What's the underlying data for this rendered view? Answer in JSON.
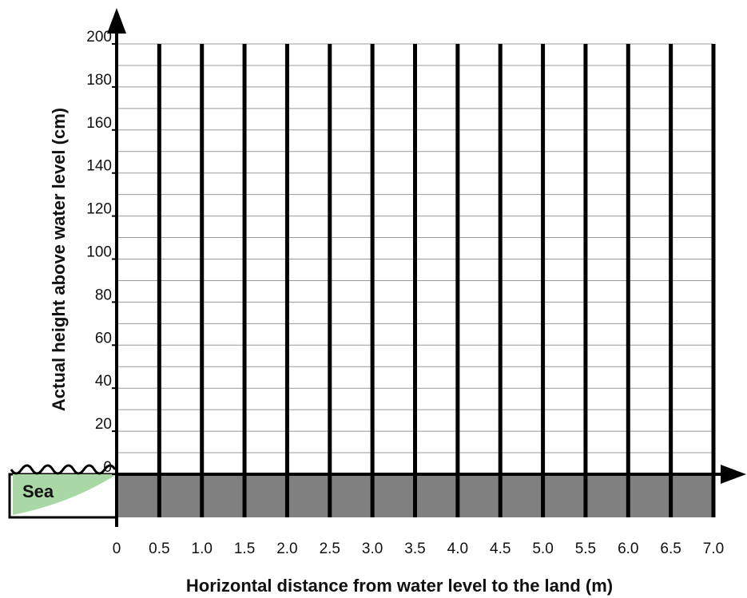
{
  "chart_data": {
    "type": "grid",
    "x_label": "Horizontal distance from water level to the land (m)",
    "y_label": "Actual height above water level (cm)",
    "sea_label": "Sea",
    "xlim": [
      0,
      7
    ],
    "xticks": [
      0,
      0.5,
      {
        "value": 1,
        "label": "1.0"
      },
      1.5,
      {
        "value": 2,
        "label": "2.0"
      },
      2.5,
      {
        "value": 3,
        "label": "3.0"
      },
      3.5,
      {
        "value": 4,
        "label": "4.0"
      },
      4.5,
      {
        "value": 5,
        "label": "5.0"
      },
      5.5,
      {
        "value": 6,
        "label": "6.0"
      },
      6.5,
      {
        "value": 7,
        "label": "7.0"
      }
    ],
    "ylim": [
      0,
      200
    ],
    "yticks": [
      0,
      20,
      40,
      60,
      80,
      100,
      120,
      140,
      160,
      180,
      200
    ],
    "minor_yticks": [
      10,
      30,
      50,
      70,
      90,
      110,
      130,
      150,
      170,
      190
    ],
    "grid": true,
    "ground_color": "#808080",
    "sea_color": "#a9d8a6"
  }
}
